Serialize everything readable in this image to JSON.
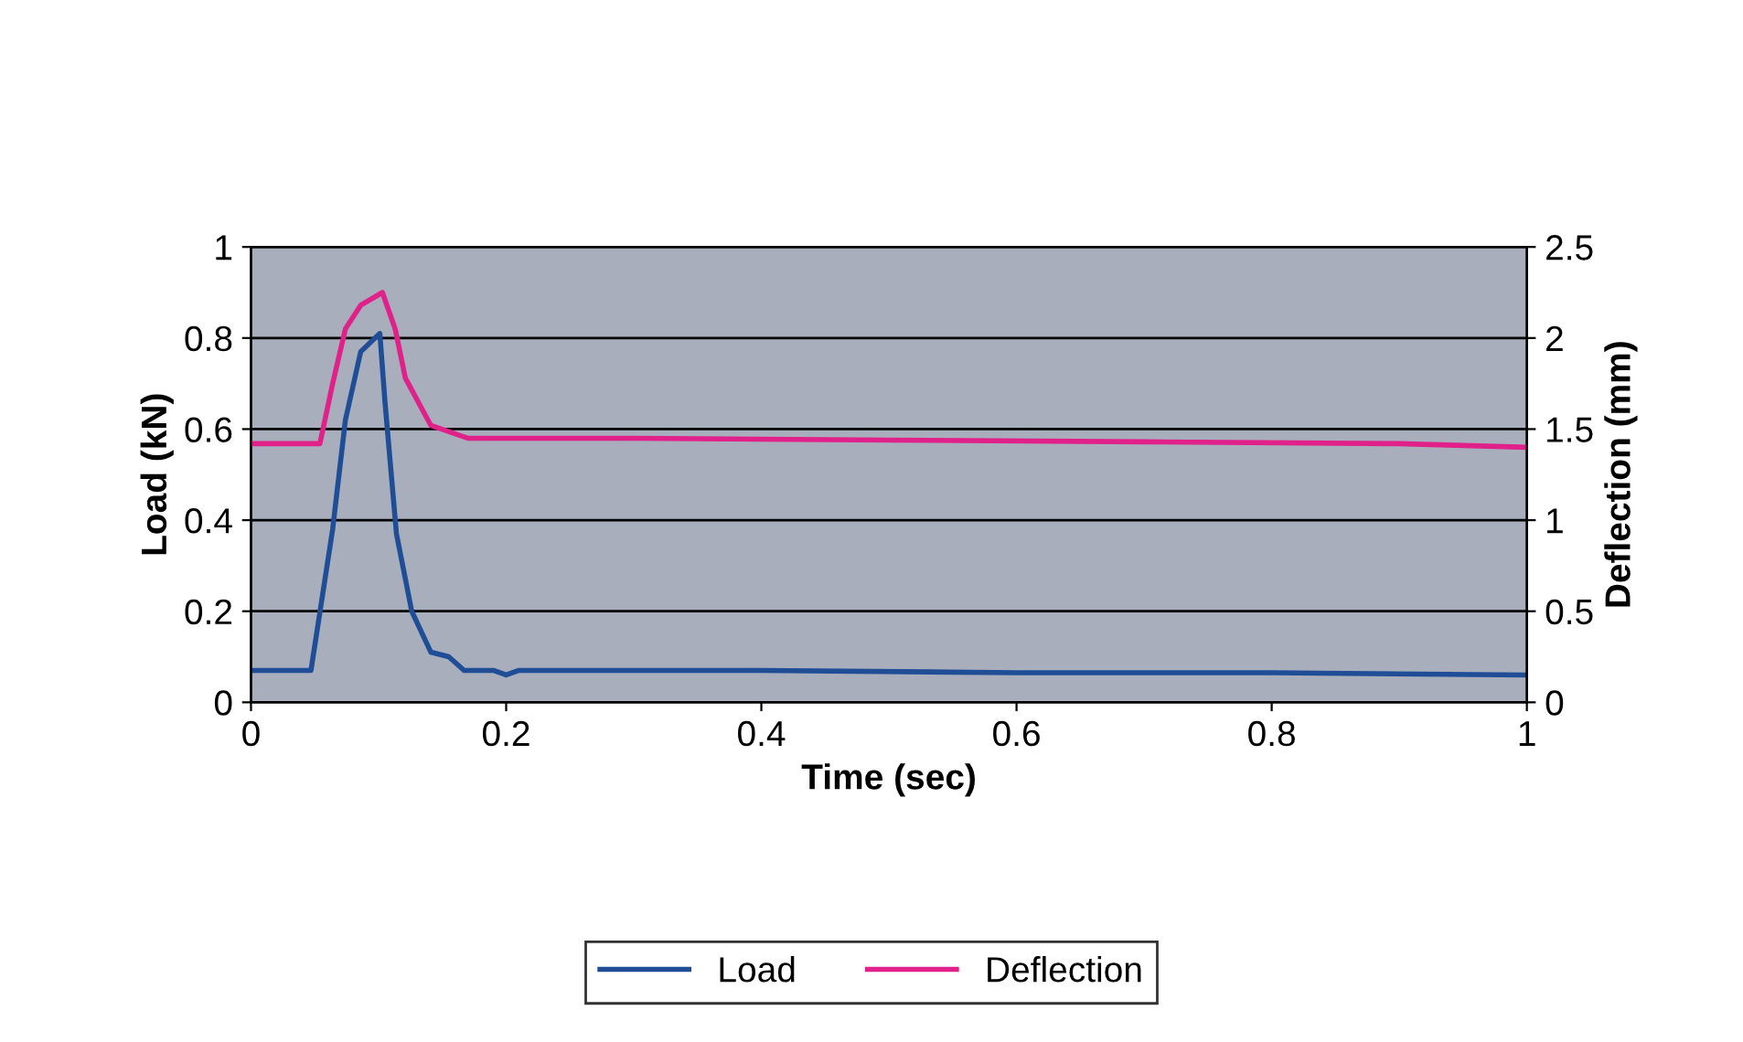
{
  "chart_data": {
    "type": "line",
    "xlabel": "Time (sec)",
    "ylabel": "Load (kN)",
    "y2label": "Deflection (mm)",
    "xlim": [
      0,
      1
    ],
    "xticks": [
      0,
      0.2,
      0.4,
      0.6,
      0.8,
      1
    ],
    "ylim": [
      0,
      1
    ],
    "yticks": [
      0,
      0.2,
      0.4,
      0.6,
      0.8,
      1
    ],
    "y2lim": [
      0,
      2.5
    ],
    "y2ticks": [
      0,
      0.5,
      1,
      1.5,
      2,
      2.5
    ],
    "grid": "y",
    "legend": "bottom",
    "marker": "none",
    "line_style": "solid",
    "series": [
      {
        "name": "Load",
        "color": "#1f4e96",
        "x": [
          0,
          0.047,
          0.064,
          0.074,
          0.086,
          0.101,
          0.105,
          0.114,
          0.126,
          0.141,
          0.155,
          0.167,
          0.19,
          0.2,
          0.21,
          0.23,
          0.4,
          0.6,
          0.8,
          1
        ],
        "values": [
          0.07,
          0.07,
          0.38,
          0.62,
          0.77,
          0.81,
          0.66,
          0.37,
          0.2,
          0.11,
          0.1,
          0.07,
          0.07,
          0.06,
          0.07,
          0.07,
          0.07,
          0.065,
          0.065,
          0.06
        ]
      },
      {
        "name": "Deflection",
        "color": "#e0218a",
        "axis": "y2",
        "x": [
          0,
          0.054,
          0.064,
          0.074,
          0.086,
          0.103,
          0.113,
          0.121,
          0.141,
          0.17,
          0.3,
          0.5,
          0.7,
          0.9,
          1
        ],
        "values": [
          1.42,
          1.42,
          1.75,
          2.05,
          2.18,
          2.25,
          2.05,
          1.78,
          1.52,
          1.45,
          1.45,
          1.44,
          1.43,
          1.42,
          1.4
        ]
      }
    ]
  }
}
